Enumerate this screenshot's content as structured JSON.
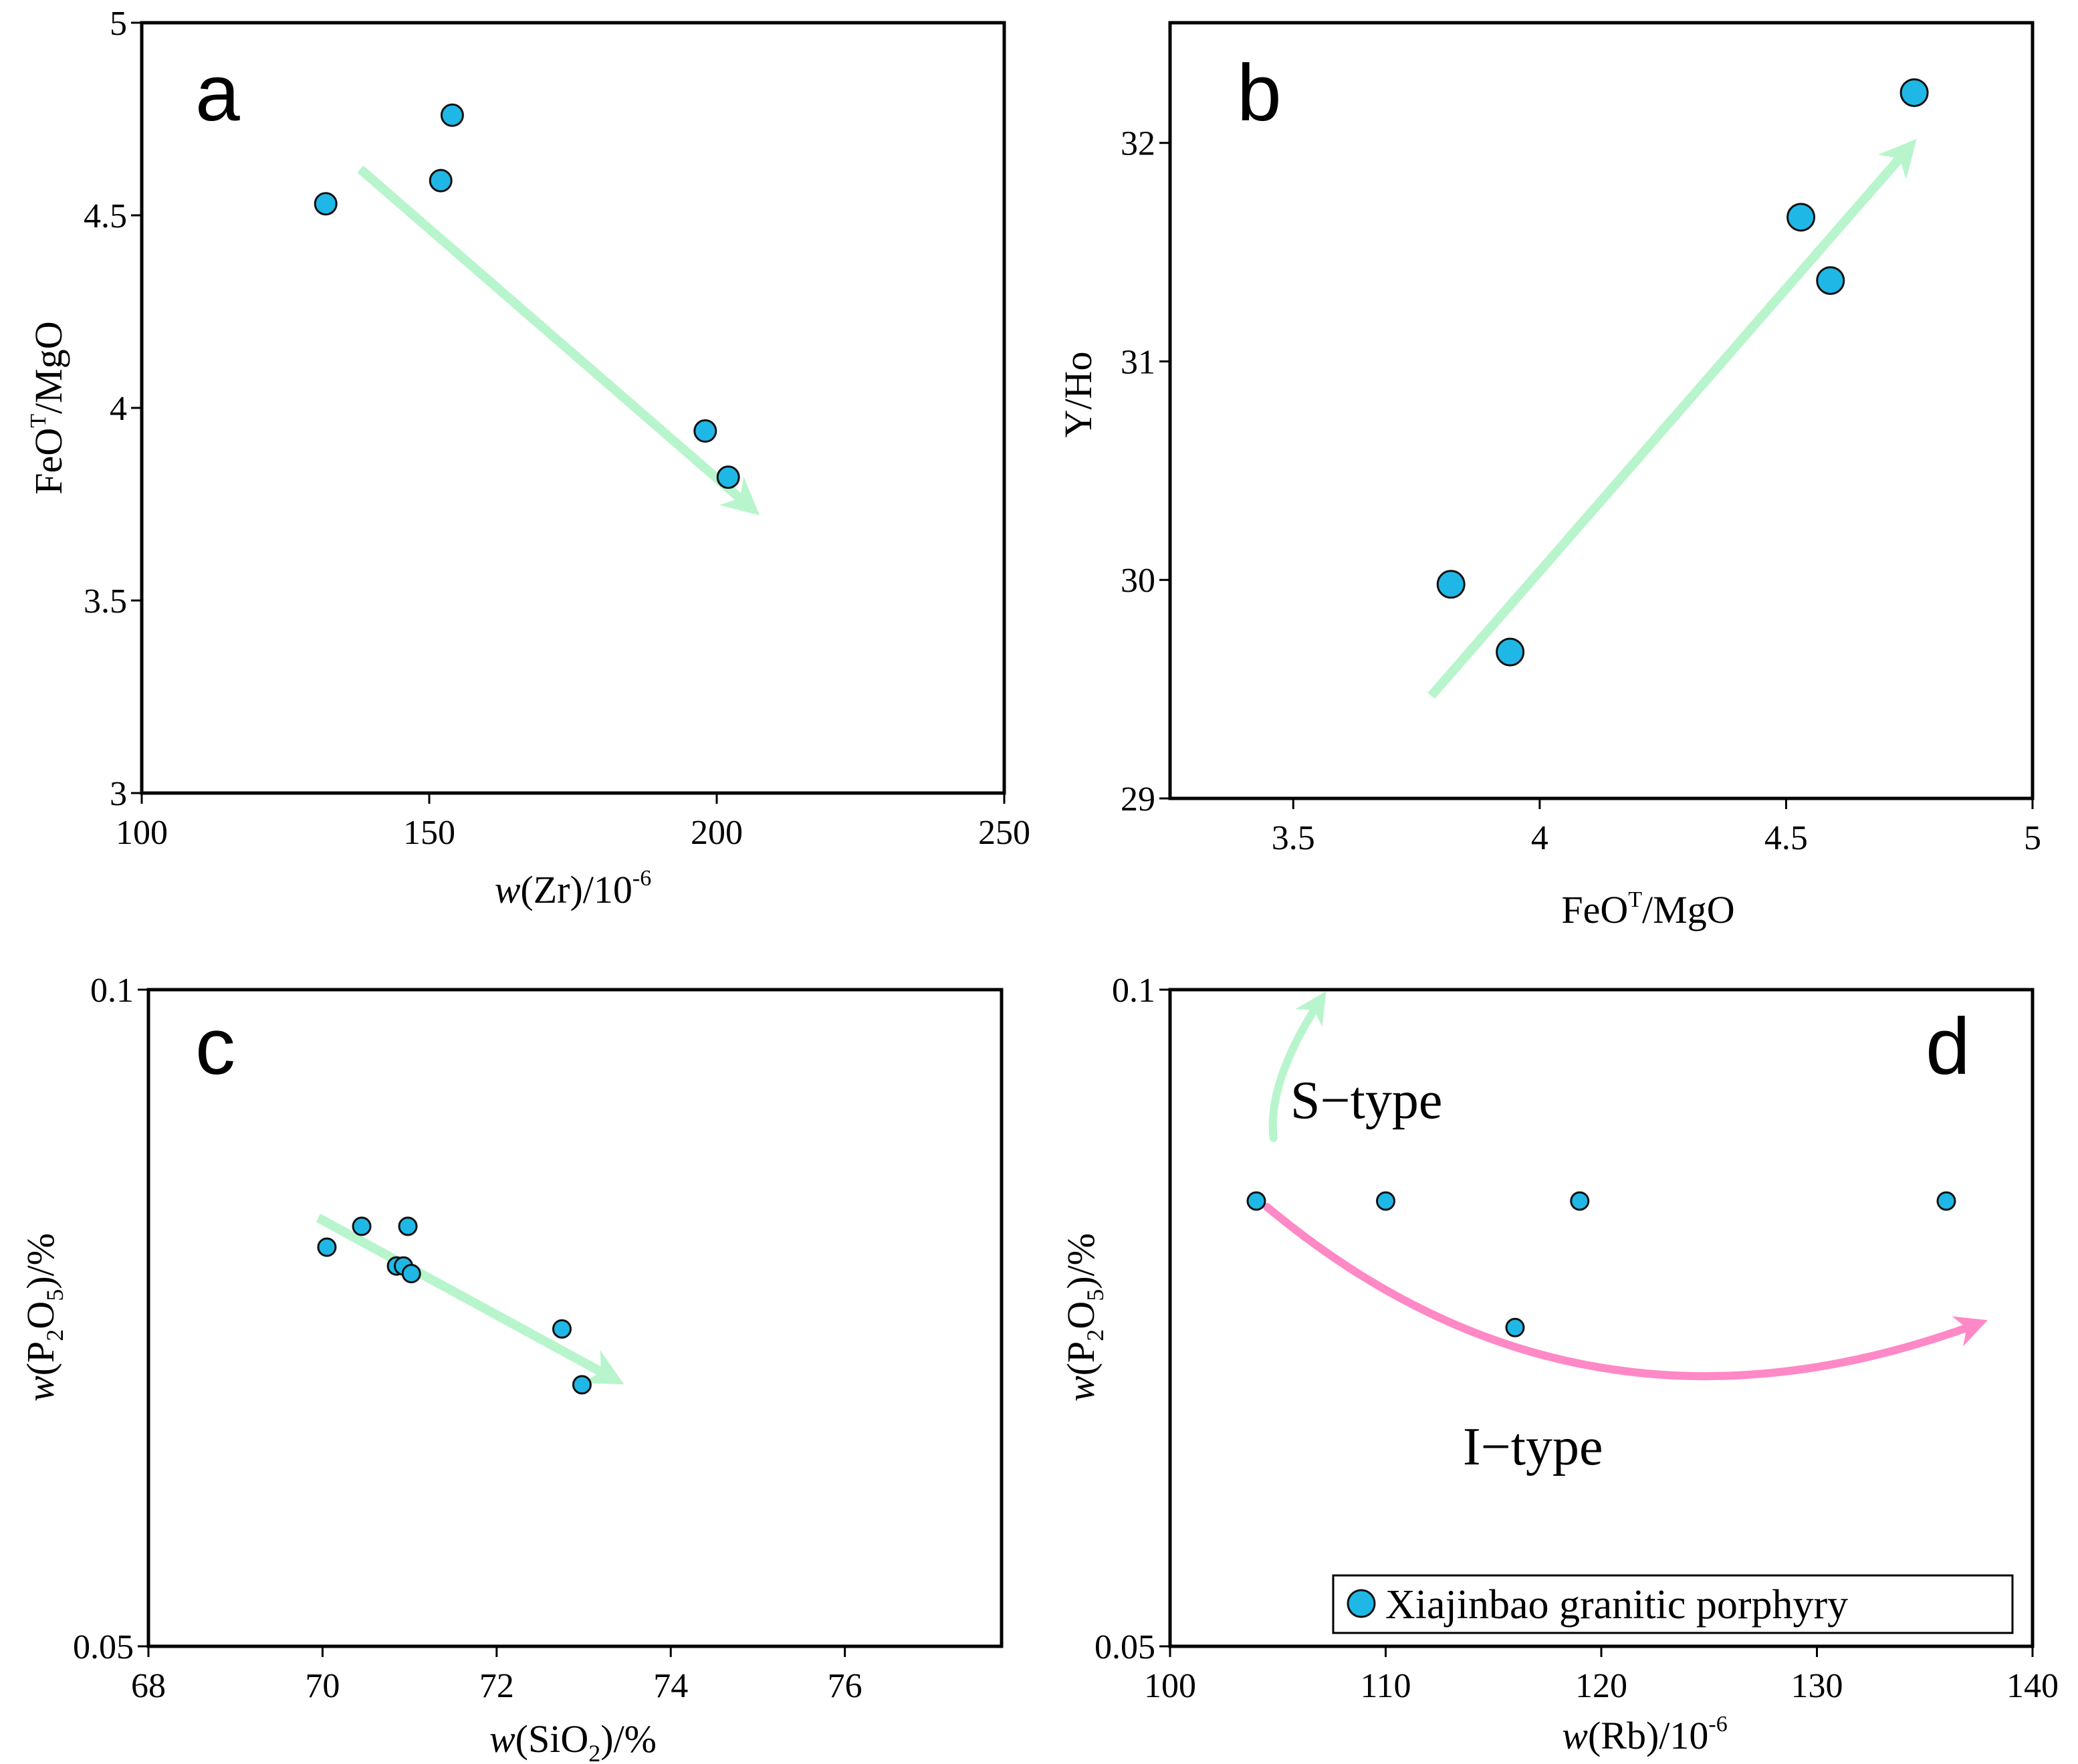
{
  "chart_data": [
    {
      "panel": "a",
      "type": "scatter",
      "xlabel": "w(Zr)/10⁻⁶",
      "ylabel": "FeOᵀ/MgO",
      "xlim": [
        100,
        250
      ],
      "ylim": [
        3,
        5
      ],
      "xticks": [
        100,
        150,
        200,
        250
      ],
      "yticks": [
        3,
        3.5,
        4,
        4.5,
        5
      ],
      "xtick_labels": [
        "100",
        "150",
        "200",
        "250"
      ],
      "ytick_labels": [
        "3",
        "3.5",
        "4",
        "4.5",
        "5"
      ],
      "series": [
        {
          "x": [
            132,
            154,
            152,
            198,
            202
          ],
          "y": [
            4.53,
            4.76,
            4.59,
            3.94,
            3.82
          ]
        }
      ],
      "arrows": [
        {
          "color": "#b8f5cc",
          "from": [
            138,
            4.62
          ],
          "to": [
            206,
            3.74
          ]
        }
      ]
    },
    {
      "panel": "b",
      "type": "scatter",
      "xlabel": "FeOᵀ/MgO",
      "ylabel": "Y/Ho",
      "xlim": [
        3.25,
        5
      ],
      "ylim": [
        29,
        32.55
      ],
      "xticks": [
        3.5,
        4,
        4.5,
        5
      ],
      "yticks": [
        29,
        30,
        31,
        32
      ],
      "xtick_labels": [
        "3.5",
        "4",
        "4.5",
        "5"
      ],
      "ytick_labels": [
        "29",
        "30",
        "31",
        "32"
      ],
      "series": [
        {
          "x": [
            3.82,
            3.94,
            4.53,
            4.59,
            4.76
          ],
          "y": [
            29.98,
            29.67,
            31.66,
            31.37,
            32.23
          ]
        }
      ],
      "arrows": [
        {
          "color": "#b8f5cc",
          "from": [
            3.78,
            29.47
          ],
          "to": [
            4.75,
            31.98
          ]
        }
      ]
    },
    {
      "panel": "c",
      "type": "scatter",
      "xlabel": "w(SiO₂)/%",
      "ylabel": "w(P₂O₅)/%",
      "xlim": [
        68,
        77.8
      ],
      "ylim": [
        0.05,
        0.1
      ],
      "xticks": [
        68,
        70,
        72,
        74,
        76
      ],
      "yticks": [
        0.05,
        0.1
      ],
      "xtick_labels": [
        "68",
        "70",
        "72",
        "74",
        "76"
      ],
      "ytick_labels": [
        "0.05",
        "0.1"
      ],
      "series": [
        {
          "x": [
            70.05,
            70.45,
            70.98,
            70.85,
            70.93,
            71.02,
            72.75,
            72.98
          ],
          "y": [
            0.0762,
            0.0779,
            0.0779,
            0.0747,
            0.0747,
            0.0741,
            0.0699,
            0.0659
          ]
        }
      ],
      "arrows": [
        {
          "color": "#b8f5cc",
          "from": [
            69.95,
            0.0786
          ],
          "to": [
            73.35,
            0.0663
          ]
        }
      ]
    },
    {
      "panel": "d",
      "type": "scatter",
      "xlabel": "w(Rb)/10⁻⁶",
      "ylabel": "w(P₂O₅)/%",
      "xlim": [
        100,
        140
      ],
      "ylim": [
        0.05,
        0.1
      ],
      "xticks": [
        100,
        110,
        120,
        130,
        140
      ],
      "yticks": [
        0.05,
        0.1
      ],
      "xtick_labels": [
        "100",
        "110",
        "120",
        "130",
        "140"
      ],
      "ytick_labels": [
        "0.05",
        "0.1"
      ],
      "series": [
        {
          "name": "Xiajinbao granitic porphyry",
          "x": [
            104,
            110,
            119,
            136,
            116
          ],
          "y": [
            0.08,
            0.08,
            0.08,
            0.08,
            0.07
          ]
        }
      ],
      "annotations": [
        {
          "text": "S−type",
          "color": "#b8f5cc",
          "x": 105.5,
          "y": 0.092
        },
        {
          "text": "I−type",
          "color": "#ff88c6",
          "x": 113.8,
          "y": 0.0655
        }
      ],
      "arrows": [
        {
          "color": "#b8f5cc",
          "curved": true,
          "from": [
            104.8,
            0.0855
          ],
          "to": [
            107,
            0.099
          ]
        },
        {
          "color": "#ff88c6",
          "curved": true,
          "from": [
            104.5,
            0.0795
          ],
          "to": [
            137.5,
            0.0703
          ]
        }
      ],
      "legend": {
        "position": "bottom-right",
        "label": "Xiajinbao granitic porphyry"
      }
    }
  ],
  "labels": {
    "panel_a": {
      "letter": "a",
      "xlabel_pre": "w",
      "xlabel_post": "(Zr)/10",
      "xlabel_sup": "-6",
      "ylabel_pre": "FeO",
      "ylabel_sup": "T",
      "ylabel_post": "/MgO"
    },
    "panel_b": {
      "letter": "b",
      "xlabel_pre": "FeO",
      "xlabel_sup": "T",
      "xlabel_post": "/MgO",
      "ylabel": "Y/Ho"
    },
    "panel_c": {
      "letter": "c",
      "xlabel_pre": "w",
      "xlabel_mid": "(SiO",
      "xlabel_sub": "2",
      "xlabel_post": ")/%",
      "ylabel_pre": "w",
      "ylabel_mid": "(P",
      "ylabel_sub1": "2",
      "ylabel_mid2": "O",
      "ylabel_sub2": "5",
      "ylabel_post": ")/%"
    },
    "panel_d": {
      "letter": "d",
      "xlabel_pre": "w",
      "xlabel_post": "(Rb)/10",
      "xlabel_sup": "-6",
      "ylabel_pre": "w",
      "ylabel_mid": "(P",
      "ylabel_sub1": "2",
      "ylabel_mid2": "O",
      "ylabel_sub2": "5",
      "ylabel_post": ")/%",
      "annot_s": "S−type",
      "annot_i": "I−type",
      "legend_label": "Xiajinbao granitic porphyry"
    }
  },
  "colors": {
    "point_fill": "#1fb8e6",
    "arrow_green": "#b8f5cc",
    "arrow_pink": "#ff88c6"
  }
}
